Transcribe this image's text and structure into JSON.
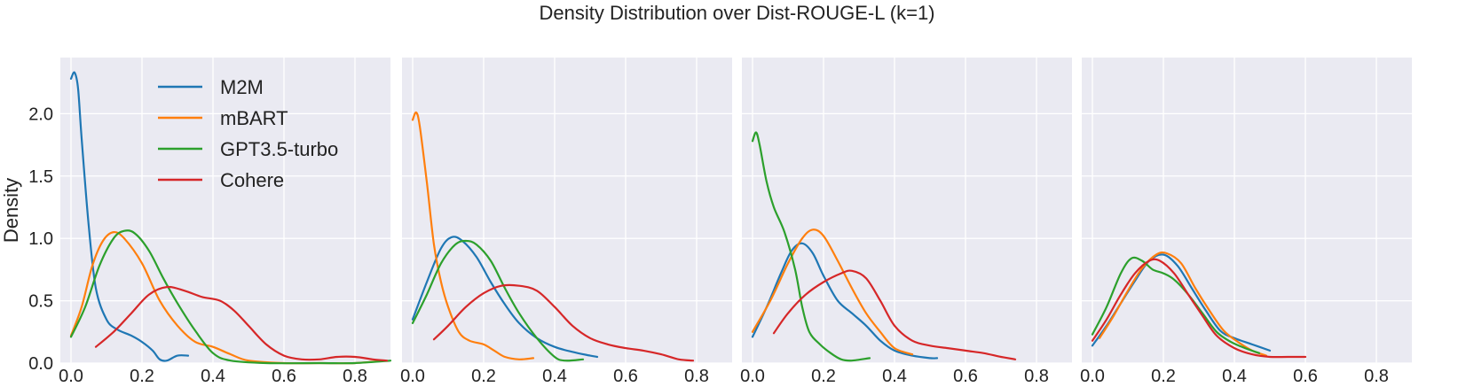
{
  "title": "Density Distribution over Dist-ROUGE-L (k=1)",
  "colors": {
    "M2M": "#1f77b4",
    "mBART": "#ff7f0e",
    "GPT3.5-turbo": "#2ca02c",
    "Cohere": "#d62728",
    "panel_bg": "#eaeaf2",
    "grid": "#ffffff"
  },
  "legend": [
    {
      "name": "M2M",
      "color": "#1f77b4"
    },
    {
      "name": "mBART",
      "color": "#ff7f0e"
    },
    {
      "name": "GPT3.5-turbo",
      "color": "#2ca02c"
    },
    {
      "name": "Cohere",
      "color": "#d62728"
    }
  ],
  "chart_data": [
    {
      "type": "line",
      "ylabel": "Density",
      "xlim": [
        -0.03,
        0.9
      ],
      "ylim": [
        0,
        2.45
      ],
      "xticks": [
        0.0,
        0.2,
        0.4,
        0.6,
        0.8
      ],
      "xtick_labels": [
        "0.0",
        "0.2",
        "0.4",
        "0.6",
        "0.8"
      ],
      "yticks": [
        0.0,
        0.5,
        1.0,
        1.5,
        2.0
      ],
      "ytick_labels": [
        "0.0",
        "0.5",
        "1.0",
        "1.5",
        "2.0"
      ],
      "grid": true,
      "legend_position": "top-left",
      "series": [
        {
          "name": "M2M",
          "points": [
            [
              0.0,
              2.28
            ],
            [
              0.01,
              2.33
            ],
            [
              0.02,
              2.2
            ],
            [
              0.03,
              1.8
            ],
            [
              0.05,
              1.1
            ],
            [
              0.07,
              0.6
            ],
            [
              0.1,
              0.35
            ],
            [
              0.13,
              0.27
            ],
            [
              0.17,
              0.22
            ],
            [
              0.2,
              0.17
            ],
            [
              0.23,
              0.1
            ],
            [
              0.25,
              0.03
            ],
            [
              0.27,
              0.02
            ],
            [
              0.3,
              0.06
            ],
            [
              0.33,
              0.06
            ]
          ]
        },
        {
          "name": "mBART",
          "points": [
            [
              0.0,
              0.22
            ],
            [
              0.03,
              0.45
            ],
            [
              0.06,
              0.78
            ],
            [
              0.09,
              0.98
            ],
            [
              0.12,
              1.05
            ],
            [
              0.15,
              1.0
            ],
            [
              0.2,
              0.8
            ],
            [
              0.25,
              0.5
            ],
            [
              0.3,
              0.3
            ],
            [
              0.35,
              0.17
            ],
            [
              0.4,
              0.13
            ],
            [
              0.45,
              0.07
            ],
            [
              0.5,
              0.02
            ],
            [
              0.6,
              0.0
            ],
            [
              0.7,
              0.0
            ],
            [
              0.8,
              0.0
            ],
            [
              0.88,
              0.02
            ]
          ]
        },
        {
          "name": "GPT3.5-turbo",
          "points": [
            [
              0.0,
              0.21
            ],
            [
              0.04,
              0.45
            ],
            [
              0.08,
              0.78
            ],
            [
              0.12,
              1.0
            ],
            [
              0.15,
              1.06
            ],
            [
              0.18,
              1.04
            ],
            [
              0.22,
              0.9
            ],
            [
              0.26,
              0.68
            ],
            [
              0.3,
              0.48
            ],
            [
              0.35,
              0.26
            ],
            [
              0.4,
              0.08
            ],
            [
              0.45,
              0.02
            ],
            [
              0.55,
              0.0
            ],
            [
              0.7,
              0.0
            ],
            [
              0.8,
              0.0
            ],
            [
              0.9,
              0.02
            ]
          ]
        },
        {
          "name": "Cohere",
          "points": [
            [
              0.07,
              0.13
            ],
            [
              0.12,
              0.25
            ],
            [
              0.17,
              0.4
            ],
            [
              0.22,
              0.55
            ],
            [
              0.27,
              0.61
            ],
            [
              0.32,
              0.58
            ],
            [
              0.37,
              0.53
            ],
            [
              0.42,
              0.5
            ],
            [
              0.46,
              0.42
            ],
            [
              0.5,
              0.3
            ],
            [
              0.55,
              0.15
            ],
            [
              0.6,
              0.06
            ],
            [
              0.65,
              0.03
            ],
            [
              0.7,
              0.03
            ],
            [
              0.75,
              0.05
            ],
            [
              0.8,
              0.05
            ],
            [
              0.85,
              0.03
            ],
            [
              0.89,
              0.02
            ]
          ]
        }
      ]
    },
    {
      "type": "line",
      "xlim": [
        -0.03,
        0.9
      ],
      "ylim": [
        0,
        2.45
      ],
      "xticks": [
        0.0,
        0.2,
        0.4,
        0.6,
        0.8
      ],
      "xtick_labels": [
        "0.0",
        "0.2",
        "0.4",
        "0.6",
        "0.8"
      ],
      "yticks": [
        0.0,
        0.5,
        1.0,
        1.5,
        2.0
      ],
      "grid": true,
      "series": [
        {
          "name": "M2M",
          "points": [
            [
              0.0,
              0.35
            ],
            [
              0.04,
              0.65
            ],
            [
              0.08,
              0.92
            ],
            [
              0.11,
              1.01
            ],
            [
              0.14,
              0.98
            ],
            [
              0.18,
              0.85
            ],
            [
              0.22,
              0.65
            ],
            [
              0.26,
              0.47
            ],
            [
              0.3,
              0.32
            ],
            [
              0.35,
              0.2
            ],
            [
              0.4,
              0.13
            ],
            [
              0.45,
              0.09
            ],
            [
              0.5,
              0.06
            ],
            [
              0.52,
              0.05
            ]
          ]
        },
        {
          "name": "mBART",
          "points": [
            [
              0.0,
              1.95
            ],
            [
              0.01,
              2.01
            ],
            [
              0.02,
              1.9
            ],
            [
              0.04,
              1.45
            ],
            [
              0.06,
              0.95
            ],
            [
              0.08,
              0.65
            ],
            [
              0.1,
              0.45
            ],
            [
              0.13,
              0.25
            ],
            [
              0.16,
              0.18
            ],
            [
              0.2,
              0.15
            ],
            [
              0.23,
              0.1
            ],
            [
              0.26,
              0.05
            ],
            [
              0.3,
              0.03
            ],
            [
              0.34,
              0.04
            ]
          ]
        },
        {
          "name": "GPT3.5-turbo",
          "points": [
            [
              0.0,
              0.32
            ],
            [
              0.04,
              0.55
            ],
            [
              0.08,
              0.8
            ],
            [
              0.12,
              0.95
            ],
            [
              0.15,
              0.98
            ],
            [
              0.18,
              0.95
            ],
            [
              0.22,
              0.82
            ],
            [
              0.26,
              0.6
            ],
            [
              0.3,
              0.4
            ],
            [
              0.35,
              0.2
            ],
            [
              0.4,
              0.05
            ],
            [
              0.43,
              0.02
            ],
            [
              0.48,
              0.03
            ]
          ]
        },
        {
          "name": "Cohere",
          "points": [
            [
              0.06,
              0.19
            ],
            [
              0.1,
              0.3
            ],
            [
              0.15,
              0.45
            ],
            [
              0.2,
              0.56
            ],
            [
              0.25,
              0.62
            ],
            [
              0.3,
              0.62
            ],
            [
              0.35,
              0.58
            ],
            [
              0.4,
              0.45
            ],
            [
              0.45,
              0.3
            ],
            [
              0.5,
              0.2
            ],
            [
              0.55,
              0.15
            ],
            [
              0.6,
              0.12
            ],
            [
              0.65,
              0.1
            ],
            [
              0.7,
              0.07
            ],
            [
              0.75,
              0.03
            ],
            [
              0.79,
              0.02
            ]
          ]
        }
      ]
    },
    {
      "type": "line",
      "xlim": [
        -0.03,
        0.9
      ],
      "ylim": [
        0,
        2.45
      ],
      "xticks": [
        0.0,
        0.2,
        0.4,
        0.6,
        0.8
      ],
      "xtick_labels": [
        "0.0",
        "0.2",
        "0.4",
        "0.6",
        "0.8"
      ],
      "yticks": [
        0.0,
        0.5,
        1.0,
        1.5,
        2.0
      ],
      "grid": true,
      "series": [
        {
          "name": "M2M",
          "points": [
            [
              0.0,
              0.21
            ],
            [
              0.04,
              0.45
            ],
            [
              0.08,
              0.72
            ],
            [
              0.11,
              0.9
            ],
            [
              0.14,
              0.96
            ],
            [
              0.17,
              0.88
            ],
            [
              0.2,
              0.7
            ],
            [
              0.24,
              0.5
            ],
            [
              0.28,
              0.4
            ],
            [
              0.32,
              0.3
            ],
            [
              0.36,
              0.18
            ],
            [
              0.4,
              0.1
            ],
            [
              0.45,
              0.06
            ],
            [
              0.5,
              0.04
            ],
            [
              0.52,
              0.04
            ]
          ]
        },
        {
          "name": "mBART",
          "points": [
            [
              0.0,
              0.25
            ],
            [
              0.05,
              0.5
            ],
            [
              0.1,
              0.8
            ],
            [
              0.14,
              1.0
            ],
            [
              0.17,
              1.07
            ],
            [
              0.2,
              1.02
            ],
            [
              0.24,
              0.82
            ],
            [
              0.28,
              0.6
            ],
            [
              0.32,
              0.4
            ],
            [
              0.36,
              0.25
            ],
            [
              0.4,
              0.12
            ],
            [
              0.45,
              0.07
            ]
          ]
        },
        {
          "name": "GPT3.5-turbo",
          "points": [
            [
              0.0,
              1.78
            ],
            [
              0.01,
              1.85
            ],
            [
              0.02,
              1.75
            ],
            [
              0.04,
              1.45
            ],
            [
              0.06,
              1.25
            ],
            [
              0.09,
              1.05
            ],
            [
              0.12,
              0.75
            ],
            [
              0.14,
              0.45
            ],
            [
              0.16,
              0.25
            ],
            [
              0.19,
              0.15
            ],
            [
              0.22,
              0.08
            ],
            [
              0.25,
              0.03
            ],
            [
              0.28,
              0.02
            ],
            [
              0.33,
              0.04
            ]
          ]
        },
        {
          "name": "Cohere",
          "points": [
            [
              0.06,
              0.24
            ],
            [
              0.1,
              0.4
            ],
            [
              0.15,
              0.55
            ],
            [
              0.2,
              0.65
            ],
            [
              0.25,
              0.72
            ],
            [
              0.28,
              0.74
            ],
            [
              0.32,
              0.68
            ],
            [
              0.36,
              0.5
            ],
            [
              0.4,
              0.3
            ],
            [
              0.45,
              0.18
            ],
            [
              0.5,
              0.14
            ],
            [
              0.55,
              0.12
            ],
            [
              0.6,
              0.1
            ],
            [
              0.65,
              0.08
            ],
            [
              0.7,
              0.05
            ],
            [
              0.74,
              0.03
            ]
          ]
        }
      ]
    },
    {
      "type": "line",
      "xlim": [
        -0.03,
        0.9
      ],
      "ylim": [
        0,
        2.45
      ],
      "xticks": [
        0.0,
        0.2,
        0.4,
        0.6,
        0.8
      ],
      "xtick_labels": [
        "0.0",
        "0.2",
        "0.4",
        "0.6",
        "0.8"
      ],
      "yticks": [
        0.0,
        0.5,
        1.0,
        1.5,
        2.0
      ],
      "grid": true,
      "series": [
        {
          "name": "M2M",
          "points": [
            [
              0.0,
              0.14
            ],
            [
              0.04,
              0.3
            ],
            [
              0.08,
              0.48
            ],
            [
              0.12,
              0.66
            ],
            [
              0.16,
              0.82
            ],
            [
              0.2,
              0.87
            ],
            [
              0.24,
              0.78
            ],
            [
              0.28,
              0.6
            ],
            [
              0.32,
              0.42
            ],
            [
              0.36,
              0.26
            ],
            [
              0.4,
              0.2
            ],
            [
              0.45,
              0.15
            ],
            [
              0.5,
              0.1
            ]
          ]
        },
        {
          "name": "mBART",
          "points": [
            [
              0.02,
              0.2
            ],
            [
              0.06,
              0.38
            ],
            [
              0.1,
              0.58
            ],
            [
              0.14,
              0.76
            ],
            [
              0.18,
              0.87
            ],
            [
              0.21,
              0.88
            ],
            [
              0.25,
              0.8
            ],
            [
              0.29,
              0.6
            ],
            [
              0.33,
              0.42
            ],
            [
              0.37,
              0.26
            ],
            [
              0.41,
              0.17
            ],
            [
              0.45,
              0.1
            ],
            [
              0.49,
              0.06
            ]
          ]
        },
        {
          "name": "GPT3.5-turbo",
          "points": [
            [
              0.0,
              0.23
            ],
            [
              0.04,
              0.45
            ],
            [
              0.08,
              0.72
            ],
            [
              0.11,
              0.84
            ],
            [
              0.14,
              0.82
            ],
            [
              0.17,
              0.75
            ],
            [
              0.2,
              0.72
            ],
            [
              0.23,
              0.67
            ],
            [
              0.27,
              0.55
            ],
            [
              0.31,
              0.4
            ],
            [
              0.35,
              0.25
            ],
            [
              0.39,
              0.17
            ],
            [
              0.43,
              0.12
            ],
            [
              0.47,
              0.08
            ]
          ]
        },
        {
          "name": "Cohere",
          "points": [
            [
              0.0,
              0.18
            ],
            [
              0.04,
              0.35
            ],
            [
              0.08,
              0.55
            ],
            [
              0.12,
              0.72
            ],
            [
              0.16,
              0.82
            ],
            [
              0.19,
              0.82
            ],
            [
              0.23,
              0.72
            ],
            [
              0.27,
              0.55
            ],
            [
              0.31,
              0.38
            ],
            [
              0.35,
              0.22
            ],
            [
              0.4,
              0.12
            ],
            [
              0.45,
              0.07
            ],
            [
              0.5,
              0.05
            ],
            [
              0.55,
              0.05
            ],
            [
              0.6,
              0.05
            ]
          ]
        }
      ]
    }
  ]
}
